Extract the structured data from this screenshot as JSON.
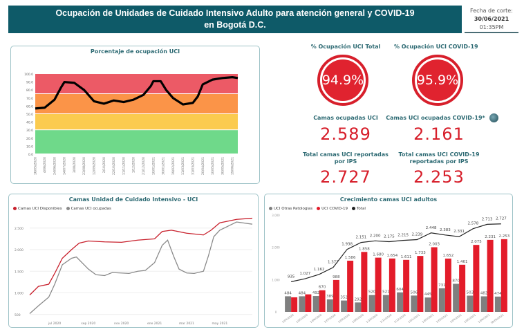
{
  "header": {
    "title_line1": "Ocupación de Unidades de Cuidado Intensivo Adulto para atención general y COVID-19",
    "title_line2": "en Bogotá D.C.",
    "fecha_label": "Fecha de corte:",
    "fecha": "30/06/2021",
    "hora": "01:35PM",
    "color": "#0e5a68"
  },
  "kpis": {
    "total_pct_title": "% Ocupación UCI Total",
    "total_pct": "94.9%",
    "covid_pct_title": "% Ocupación UCI COVID-19",
    "covid_pct": "95.9%",
    "ocupadas_title": "Camas ocupadas UCI",
    "ocupadas": "2.589",
    "ocupadas_covid_title": "Camas UCI ocupadas COVID-19*",
    "ocupadas_covid": "2.161",
    "total_title": "Total camas UCI reportadas por IPS",
    "total": "2.727",
    "total_covid_title": "Total camas UCI COVID-19 reportadas por IPS",
    "total_covid": "2.253",
    "info_icon": "globe-info-icon",
    "accent": "#d71f2b"
  },
  "chart_data": [
    {
      "type": "line",
      "title": "Porcentaje de ocupación UCI",
      "ylim": [
        0,
        100
      ],
      "yticks": [
        "0.0",
        "10.0",
        "20.0",
        "30.0",
        "40.0",
        "50.0",
        "60.0",
        "70.0",
        "80.0",
        "90.0",
        "100.0"
      ],
      "bands": [
        {
          "from": 0,
          "to": 30,
          "color": "#6fd98a"
        },
        {
          "from": 30,
          "to": 50,
          "color": "#fbcb4f"
        },
        {
          "from": 50,
          "to": 75,
          "color": "#fb9448"
        },
        {
          "from": 75,
          "to": 100,
          "color": "#ec5a66"
        }
      ],
      "xticks": [
        "16/05/2020",
        "4/06/2020",
        "24/06/2020",
        "14/07/2020",
        "3/08/2020",
        "23/08/2020",
        "12/09/2020",
        "2/10/2020",
        "22/10/2020",
        "11/11/2020",
        "1/12/2020",
        "21/12/2020",
        "10/01/2021",
        "30/01/2021",
        "19/02/2021",
        "11/03/2021",
        "31/03/2021",
        "20/04/2021",
        "10/05/2021",
        "30/05/2021",
        "19/06/2021"
      ],
      "x": [
        "2020-05-16",
        "2020-06-04",
        "2020-06-24",
        "2020-07-07",
        "2020-07-14",
        "2020-08-03",
        "2020-08-23",
        "2020-09-12",
        "2020-10-02",
        "2020-10-22",
        "2020-11-11",
        "2020-12-01",
        "2020-12-21",
        "2021-01-05",
        "2021-01-10",
        "2021-01-25",
        "2021-02-05",
        "2021-02-19",
        "2021-03-11",
        "2021-03-31",
        "2021-04-10",
        "2021-04-20",
        "2021-05-10",
        "2021-05-30",
        "2021-06-19",
        "2021-06-30"
      ],
      "y": [
        57,
        58,
        68,
        83,
        90,
        89,
        80,
        66,
        63,
        67,
        65,
        68,
        74,
        85,
        91,
        91,
        80,
        70,
        62,
        64,
        72,
        87,
        93,
        95,
        96,
        95
      ],
      "color": "#000000"
    },
    {
      "type": "line",
      "title": "Camas Unidad de Cuidado Intensivo - UCI",
      "ylim": [
        400,
        2800
      ],
      "yticks": [
        "500",
        "1.000",
        "1.500",
        "2.000",
        "2.500"
      ],
      "xticks": [
        {
          "label": "jul 2020",
          "date": "2020-07-01"
        },
        {
          "label": "sep 2020",
          "date": "2020-09-01"
        },
        {
          "label": "nov 2020",
          "date": "2020-11-01"
        },
        {
          "label": "ene 2021",
          "date": "2021-01-01"
        },
        {
          "label": "mar 2021",
          "date": "2021-03-01"
        },
        {
          "label": "may 2021",
          "date": "2021-05-01"
        }
      ],
      "series": [
        {
          "name": "Camas UCI Disponibles",
          "color": "#c8202c",
          "x": [
            "2020-05-16",
            "2020-06-01",
            "2020-06-20",
            "2020-07-01",
            "2020-07-15",
            "2020-08-01",
            "2020-08-15",
            "2020-09-01",
            "2020-10-01",
            "2020-11-01",
            "2020-12-01",
            "2021-01-01",
            "2021-01-15",
            "2021-02-01",
            "2021-03-01",
            "2021-04-01",
            "2021-04-15",
            "2021-05-01",
            "2021-06-01",
            "2021-06-30"
          ],
          "y": [
            950,
            1150,
            1200,
            1450,
            1800,
            2000,
            2150,
            2200,
            2180,
            2170,
            2220,
            2250,
            2420,
            2450,
            2380,
            2340,
            2450,
            2620,
            2700,
            2727
          ]
        },
        {
          "name": "Camas UCI ocupadas",
          "color": "#8a8a8a",
          "x": [
            "2020-05-16",
            "2020-06-01",
            "2020-06-20",
            "2020-07-01",
            "2020-07-15",
            "2020-08-01",
            "2020-08-10",
            "2020-09-01",
            "2020-09-15",
            "2020-10-01",
            "2020-10-15",
            "2020-11-15",
            "2020-12-01",
            "2020-12-15",
            "2021-01-01",
            "2021-01-15",
            "2021-01-25",
            "2021-02-05",
            "2021-02-15",
            "2021-03-01",
            "2021-03-15",
            "2021-04-01",
            "2021-04-10",
            "2021-04-20",
            "2021-05-01",
            "2021-06-01",
            "2021-06-30"
          ],
          "y": [
            520,
            700,
            900,
            1200,
            1650,
            1800,
            1830,
            1550,
            1420,
            1400,
            1470,
            1450,
            1500,
            1520,
            1700,
            2100,
            2220,
            1850,
            1550,
            1460,
            1450,
            1500,
            1850,
            2300,
            2450,
            2640,
            2589
          ]
        }
      ]
    },
    {
      "type": "bar",
      "title": "Crecimiento camas UCI adultos",
      "ylim": [
        0,
        3000
      ],
      "yticks": [
        "0",
        "1.000",
        "2.000",
        "3.000"
      ],
      "categories": [
        "1/04/2020",
        "1/05/2020",
        "1/06/2020",
        "1/07/2020",
        "1/08/2020",
        "1/09/2020",
        "1/10/2020",
        "1/11/2020",
        "1/12/2020",
        "1/01/2021",
        "1/02/2021",
        "1/03/2021",
        "1/04/2021",
        "1/05/2021",
        "1/06/2021",
        "30/06/2021"
      ],
      "series": [
        {
          "name": "UCI Otras Patologias",
          "color": "#7f7f7f",
          "values": [
            484,
            484,
            492,
            389,
            352,
            292,
            520,
            521,
            604,
            506,
            445,
            731,
            870,
            503,
            482,
            474
          ]
        },
        {
          "name": "UCI COVID-19",
          "color": "#e31c2a",
          "values": [
            451,
            543,
            670,
            988,
            1586,
            1858,
            1680,
            1654,
            1611,
            1733,
            2003,
            1652,
            1461,
            2075,
            2231,
            2253
          ]
        },
        {
          "name": "Total",
          "color": "#222222",
          "values": [
            935,
            1027,
            1162,
            1377,
            1938,
            2151,
            2200,
            2175,
            2215,
            2239,
            2448,
            2383,
            2331,
            2578,
            2713,
            2727
          ]
        }
      ],
      "labels_gray": [
        "484",
        "484",
        "492",
        "389",
        "352",
        "292",
        "520",
        "521",
        "604",
        "506",
        "445",
        "731",
        "870",
        "503",
        "482",
        "474"
      ],
      "labels_red": [
        "",
        "",
        "670",
        "988",
        "1.586",
        "1.858",
        "1.680",
        "1.654",
        "1.611",
        "1.733",
        "2.003",
        "1.652",
        "1.461",
        "2.075",
        "2.231",
        "2.253"
      ],
      "labels_total": [
        "935",
        "1.027",
        "1.162",
        "1.377",
        "1.938",
        "2.151",
        "2.200",
        "2.175",
        "2.215",
        "2.239",
        "2.448",
        "2.383",
        "2.331",
        "2.578",
        "2.713",
        "2.727"
      ]
    }
  ]
}
